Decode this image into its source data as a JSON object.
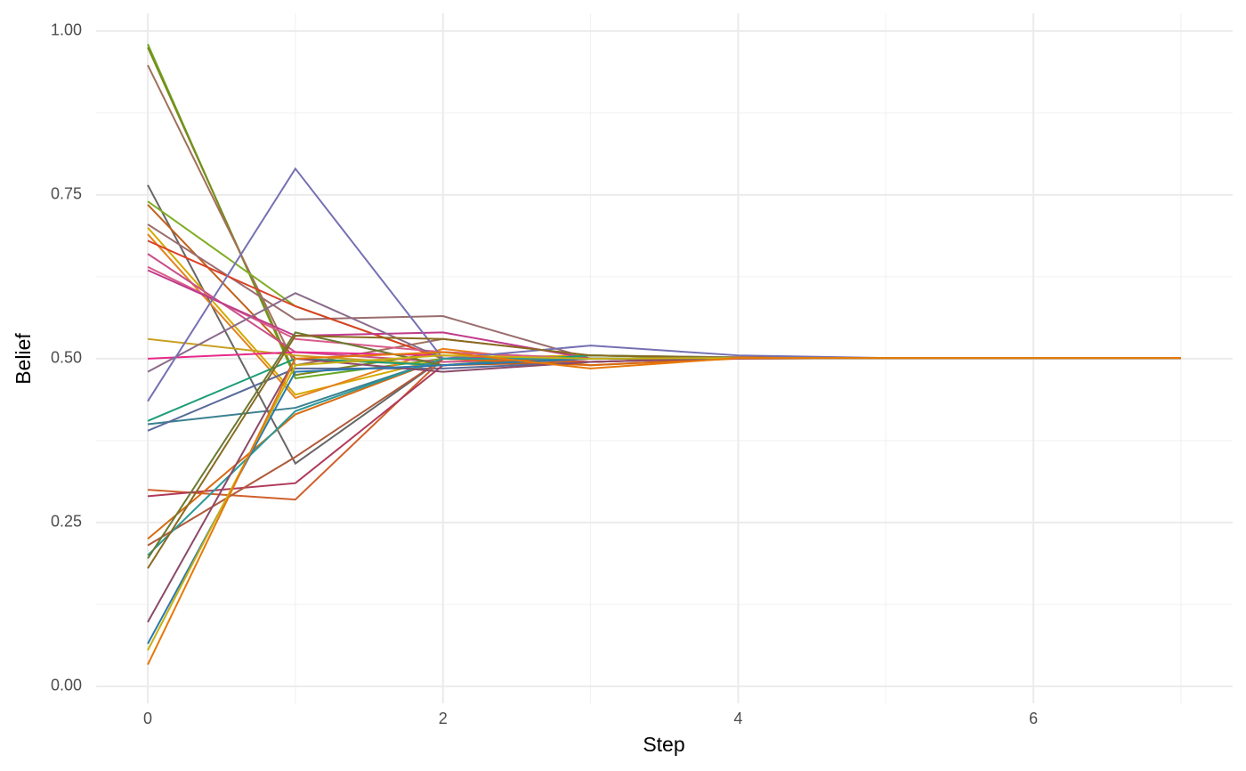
{
  "chart_data": {
    "type": "line",
    "x_label": "Step",
    "y_label": "Belief",
    "x": [
      0,
      1,
      2,
      3,
      4,
      5,
      6,
      7
    ],
    "xlim": [
      -0.35,
      7.35
    ],
    "ylim": [
      -0.026,
      1.027
    ],
    "xticks": [
      0,
      2,
      4,
      6
    ],
    "xminor": [
      1,
      3,
      5,
      7
    ],
    "yticks": [
      {
        "value": 0,
        "label": "0.00"
      },
      {
        "value": 0.25,
        "label": "0.25"
      },
      {
        "value": 0.5,
        "label": "0.50"
      },
      {
        "value": 0.75,
        "label": "0.75"
      },
      {
        "value": 1,
        "label": "1.00"
      }
    ],
    "yminor": [
      0.125,
      0.375,
      0.625,
      0.875
    ],
    "grid": true,
    "series": [
      {
        "color": "#66a61e",
        "values": [
          0.98,
          0.47,
          0.5,
          0.505,
          0.502,
          0.501,
          0.501,
          0.501
        ]
      },
      {
        "color": "#7c8a1e",
        "values": [
          0.975,
          0.475,
          0.51,
          0.5,
          0.501,
          0.501,
          0.501,
          0.501
        ]
      },
      {
        "color": "#a0705a",
        "values": [
          0.948,
          0.49,
          0.53,
          0.505,
          0.502,
          0.501,
          0.501,
          0.501
        ]
      },
      {
        "color": "#666666",
        "values": [
          0.765,
          0.34,
          0.5,
          0.5,
          0.502,
          0.501,
          0.501,
          0.501
        ]
      },
      {
        "color": "#7fae23",
        "values": [
          0.74,
          0.58,
          0.5,
          0.5,
          0.501,
          0.501,
          0.501,
          0.501
        ]
      },
      {
        "color": "#c0601a",
        "values": [
          0.735,
          0.5,
          0.49,
          0.495,
          0.502,
          0.501,
          0.501,
          0.501
        ]
      },
      {
        "color": "#9a6d6d",
        "values": [
          0.705,
          0.56,
          0.565,
          0.5,
          0.501,
          0.501,
          0.501,
          0.501
        ]
      },
      {
        "color": "#d4aa00",
        "values": [
          0.7,
          0.445,
          0.5,
          0.505,
          0.501,
          0.501,
          0.501,
          0.501
        ]
      },
      {
        "color": "#e6821e",
        "values": [
          0.69,
          0.44,
          0.515,
          0.49,
          0.5,
          0.501,
          0.501,
          0.501
        ]
      },
      {
        "color": "#d94126",
        "values": [
          0.68,
          0.58,
          0.5,
          0.5,
          0.501,
          0.501,
          0.501,
          0.501
        ]
      },
      {
        "color": "#c8508a",
        "values": [
          0.66,
          0.51,
          0.495,
          0.5,
          0.501,
          0.501,
          0.501,
          0.501
        ]
      },
      {
        "color": "#d85c8a",
        "values": [
          0.64,
          0.53,
          0.51,
          0.5,
          0.501,
          0.501,
          0.501,
          0.501
        ]
      },
      {
        "color": "#c03a8a",
        "values": [
          0.635,
          0.535,
          0.54,
          0.5,
          0.5,
          0.501,
          0.501,
          0.501
        ]
      },
      {
        "color": "#c8a020",
        "values": [
          0.53,
          0.505,
          0.49,
          0.505,
          0.501,
          0.501,
          0.501,
          0.501
        ]
      },
      {
        "color": "#e7298a",
        "values": [
          0.5,
          0.51,
          0.505,
          0.495,
          0.501,
          0.501,
          0.501,
          0.501
        ]
      },
      {
        "color": "#8a6a8a",
        "values": [
          0.48,
          0.6,
          0.5,
          0.5,
          0.501,
          0.501,
          0.501,
          0.501
        ]
      },
      {
        "color": "#7570b3",
        "values": [
          0.435,
          0.79,
          0.5,
          0.52,
          0.505,
          0.501,
          0.501,
          0.501
        ]
      },
      {
        "color": "#1b9e77",
        "values": [
          0.405,
          0.5,
          0.49,
          0.505,
          0.501,
          0.501,
          0.501,
          0.501
        ]
      },
      {
        "color": "#3a8090",
        "values": [
          0.4,
          0.425,
          0.5,
          0.5,
          0.501,
          0.501,
          0.501,
          0.501
        ]
      },
      {
        "color": "#5a6a9a",
        "values": [
          0.39,
          0.485,
          0.485,
          0.495,
          0.501,
          0.501,
          0.501,
          0.501
        ]
      },
      {
        "color": "#d0602a",
        "values": [
          0.3,
          0.285,
          0.5,
          0.495,
          0.501,
          0.501,
          0.501,
          0.501
        ]
      },
      {
        "color": "#b03a5a",
        "values": [
          0.29,
          0.31,
          0.49,
          0.5,
          0.501,
          0.501,
          0.501,
          0.501
        ]
      },
      {
        "color": "#d96a10",
        "values": [
          0.225,
          0.415,
          0.5,
          0.49,
          0.501,
          0.501,
          0.501,
          0.501
        ]
      },
      {
        "color": "#b05a3a",
        "values": [
          0.215,
          0.35,
          0.5,
          0.5,
          0.501,
          0.501,
          0.501,
          0.501
        ]
      },
      {
        "color": "#2a9a9a",
        "values": [
          0.2,
          0.42,
          0.5,
          0.5,
          0.501,
          0.501,
          0.501,
          0.501
        ]
      },
      {
        "color": "#6a7a30",
        "values": [
          0.195,
          0.54,
          0.49,
          0.5,
          0.501,
          0.501,
          0.501,
          0.501
        ]
      },
      {
        "color": "#8a6a20",
        "values": [
          0.18,
          0.535,
          0.53,
          0.505,
          0.501,
          0.501,
          0.501,
          0.501
        ]
      },
      {
        "color": "#8a4a6a",
        "values": [
          0.098,
          0.5,
          0.48,
          0.495,
          0.501,
          0.501,
          0.501,
          0.501
        ]
      },
      {
        "color": "#2a7ab0",
        "values": [
          0.065,
          0.48,
          0.49,
          0.5,
          0.501,
          0.501,
          0.501,
          0.501
        ]
      },
      {
        "color": "#c8b010",
        "values": [
          0.055,
          0.49,
          0.505,
          0.5,
          0.501,
          0.501,
          0.501,
          0.501
        ]
      },
      {
        "color": "#e6780a",
        "values": [
          0.033,
          0.5,
          0.51,
          0.485,
          0.501,
          0.501,
          0.501,
          0.501
        ]
      }
    ]
  }
}
